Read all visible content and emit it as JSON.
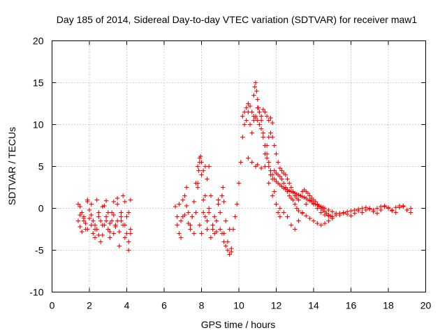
{
  "chart_data": {
    "type": "scatter",
    "title": "Day 185 of 2014, Sidereal Day-to-day VTEC variation (SDTVAR) for receiver maw1",
    "xlabel": "GPS time / hours",
    "ylabel": "SDTVAR / TECUs",
    "xlim": [
      0,
      20
    ],
    "ylim": [
      -10,
      20
    ],
    "xticks": [
      "0",
      "2",
      "4",
      "6",
      "8",
      "10",
      "12",
      "14",
      "16",
      "18",
      "20"
    ],
    "yticks": [
      "-10",
      "-5",
      "0",
      "5",
      "10",
      "15",
      "20"
    ],
    "grid": true,
    "marker": "+",
    "color": "#ff0000",
    "series": [
      {
        "name": "maw1",
        "x": [
          1.4,
          1.5,
          1.6,
          1.7,
          1.8,
          1.9,
          2.0,
          2.1,
          2.2,
          2.3,
          2.4,
          2.5,
          2.6,
          2.7,
          2.8,
          2.9,
          3.0,
          3.1,
          3.2,
          3.3,
          3.4,
          3.5,
          3.6,
          3.7,
          3.8,
          3.9,
          4.0,
          4.1,
          4.2,
          1.4,
          1.5,
          1.6,
          1.7,
          1.8,
          1.9,
          2.0,
          2.1,
          2.2,
          2.3,
          2.4,
          2.5,
          2.6,
          2.7,
          2.8,
          2.9,
          3.0,
          3.1,
          3.2,
          3.3,
          3.4,
          3.5,
          3.6,
          3.7,
          3.8,
          3.9,
          4.0,
          4.1,
          4.2,
          1.5,
          1.7,
          1.9,
          2.1,
          2.3,
          2.5,
          2.7,
          2.9,
          3.1,
          3.3,
          3.5,
          3.7,
          3.9,
          4.1,
          4.2,
          6.6,
          6.7,
          6.8,
          6.9,
          7.0,
          7.1,
          7.2,
          7.3,
          7.4,
          7.5,
          7.6,
          7.7,
          7.8,
          7.9,
          8.0,
          8.1,
          8.2,
          8.3,
          8.4,
          8.5,
          8.6,
          8.7,
          8.8,
          8.9,
          9.0,
          9.1,
          9.2,
          9.3,
          9.4,
          9.5,
          9.6,
          6.7,
          6.8,
          6.9,
          7.0,
          7.1,
          7.2,
          7.3,
          7.4,
          7.5,
          7.6,
          7.7,
          7.8,
          7.9,
          8.0,
          8.1,
          8.2,
          8.3,
          8.4,
          8.5,
          8.6,
          8.7,
          8.8,
          8.9,
          9.0,
          9.1,
          9.2,
          9.3,
          9.4,
          9.5,
          9.6,
          7.8,
          7.85,
          7.9,
          7.95,
          8.0,
          8.1,
          8.2,
          8.3,
          8.4,
          9.1,
          9.15,
          9.2,
          9.7,
          9.8,
          9.9,
          10.0,
          10.1,
          10.2,
          10.3,
          10.4,
          10.5,
          10.6,
          10.7,
          10.8,
          10.9,
          11.0,
          11.1,
          11.2,
          11.3,
          11.4,
          11.5,
          11.6,
          11.7,
          11.8,
          11.9,
          12.0,
          12.1,
          12.2,
          10.8,
          10.85,
          10.9,
          10.95,
          11.0,
          11.05,
          11.1,
          11.2,
          11.3,
          11.4,
          11.5,
          11.6,
          11.7,
          11.8,
          10.2,
          10.3,
          10.4,
          10.5,
          10.6,
          10.7,
          10.8,
          10.9,
          11.0,
          11.1,
          11.2,
          11.3,
          11.4,
          11.5,
          11.6,
          11.7,
          11.8,
          11.9,
          12.0,
          12.1,
          12.2,
          12.3,
          12.4,
          12.5,
          12.6,
          12.7,
          12.8,
          12.9,
          13.0,
          13.1,
          13.2,
          13.3,
          13.4,
          13.5,
          13.6,
          13.7,
          13.8,
          13.9,
          14.0,
          14.1,
          14.2,
          14.3,
          14.4,
          14.5,
          14.6,
          14.8,
          15.0,
          15.2,
          15.4,
          15.6,
          15.8,
          16.0,
          16.2,
          16.4,
          16.6,
          16.8,
          17.0,
          17.2,
          17.4,
          17.6,
          17.8,
          18.0,
          18.2,
          18.4,
          18.6,
          18.8,
          19.0,
          19.2,
          11.4,
          11.5,
          11.6,
          11.7,
          11.8,
          11.9,
          12.0,
          12.1,
          12.2,
          12.3,
          12.4,
          12.5,
          12.6,
          12.7,
          12.8,
          12.9,
          13.0,
          13.1,
          13.2,
          13.3,
          13.4,
          13.5,
          13.6,
          13.7,
          13.8,
          13.9,
          14.0,
          14.1,
          14.2,
          14.3,
          14.4,
          14.5,
          14.6,
          14.7,
          14.8,
          14.9,
          15.0,
          15.2,
          15.4,
          15.6,
          15.8,
          16.0,
          16.2,
          16.4,
          16.6,
          16.8,
          17.0,
          17.2,
          17.4,
          17.6,
          17.8,
          18.0,
          18.2,
          18.4,
          18.6,
          18.8,
          19.0,
          19.2,
          10.5,
          10.7,
          10.9,
          11.0,
          11.2,
          11.4,
          11.6,
          11.8,
          12.0,
          12.2,
          12.4,
          12.6,
          12.8,
          13.0,
          13.2,
          13.4,
          13.6,
          13.8,
          14.0,
          14.2,
          14.4,
          14.6,
          14.8,
          15.0,
          11.9,
          12.0,
          12.1,
          12.2,
          12.3,
          12.4,
          12.5,
          12.6,
          12.7,
          12.8,
          12.9,
          13.0,
          13.1,
          13.2,
          13.4,
          13.6,
          13.8,
          14.0,
          14.2,
          14.4,
          14.6,
          14.8,
          15.0
        ],
        "y": [
          0.5,
          0.2,
          -0.5,
          -1.5,
          -2.5,
          0.8,
          -0.2,
          0.5,
          -3.0,
          -2.0,
          1.0,
          -1.0,
          -4.0,
          -2.0,
          0.3,
          0.9,
          -0.5,
          -3.5,
          -1.5,
          0.8,
          -2.0,
          0.5,
          -4.5,
          -1.0,
          1.5,
          0.8,
          -3.0,
          -0.5,
          1.0,
          -1.5,
          -2.2,
          -2.8,
          -1.0,
          -1.8,
          -2.5,
          -1.2,
          -2.0,
          -1.5,
          -3.5,
          -2.5,
          -0.5,
          -1.5,
          -3.2,
          -2.0,
          -1.0,
          -2.5,
          -1.8,
          -0.5,
          -3.0,
          -2.2,
          -1.5,
          -2.8,
          -0.5,
          -2.0,
          -3.5,
          -1.0,
          -4.0,
          -3.0,
          -0.8,
          -1.2,
          1.0,
          -0.8,
          -2.5,
          -3.2,
          0.2,
          -1.5,
          -2.8,
          -0.8,
          1.2,
          -1.5,
          -2.0,
          -5.0,
          -2.5,
          0.2,
          -2.0,
          -3.0,
          -3.5,
          -1.0,
          1.5,
          2.5,
          -0.5,
          -2.0,
          -1.0,
          -3.0,
          3.0,
          5.0,
          6.0,
          5.5,
          1.0,
          -1.0,
          -2.5,
          -0.5,
          1.5,
          -2.5,
          -3.0,
          -1.5,
          1.0,
          -0.5,
          -3.0,
          -4.0,
          -4.5,
          -5.0,
          -5.5,
          -4.8,
          -1.0,
          0.5,
          -1.5,
          1.0,
          -0.8,
          0.3,
          -1.8,
          -2.5,
          -1.0,
          0.8,
          -0.5,
          2.5,
          -2.0,
          -3.0,
          -0.5,
          1.5,
          -1.5,
          0.0,
          -3.5,
          -2.0,
          -1.0,
          -2.8,
          0.5,
          -2.5,
          1.5,
          -3.0,
          -1.5,
          -4.0,
          -2.5,
          -5.2,
          3.0,
          4.5,
          5.5,
          6.2,
          4.0,
          4.5,
          5.0,
          3.5,
          5.0,
          1.5,
          2.5,
          0.8,
          -2.5,
          -1.0,
          0.5,
          3.0,
          5.5,
          8.5,
          10.0,
          10.5,
          11.5,
          10.0,
          9.0,
          10.5,
          11.0,
          12.0,
          11.5,
          10.5,
          9.0,
          7.5,
          6.0,
          5.0,
          4.0,
          3.5,
          2.0,
          0.5,
          -0.5,
          -1.0,
          13.5,
          14.5,
          15.0,
          14.0,
          13.0,
          12.0,
          11.5,
          11.0,
          11.8,
          11.5,
          11.0,
          10.5,
          10.8,
          10.2,
          11.0,
          11.5,
          12.0,
          12.5,
          12.2,
          11.5,
          11.0,
          10.8,
          10.5,
          10.0,
          9.5,
          8.5,
          7.5,
          6.5,
          5.5,
          4.5,
          4.0,
          3.5,
          3.2,
          3.0,
          2.8,
          2.6,
          2.4,
          2.3,
          2.2,
          2.1,
          2.0,
          1.9,
          1.8,
          1.7,
          1.6,
          1.5,
          1.4,
          1.3,
          1.2,
          1.0,
          0.9,
          0.8,
          0.6,
          0.5,
          0.4,
          0.3,
          0.2,
          0.1,
          0.0,
          -0.2,
          -0.4,
          -0.6,
          -0.8,
          -0.6,
          -0.4,
          -0.3,
          -0.2,
          -0.1,
          0.0,
          0.1,
          -0.1,
          -0.2,
          0.0,
          0.2,
          0.3,
          0.1,
          -0.2,
          0.1,
          0.3,
          0.2,
          -0.2,
          0.0,
          6.5,
          7.5,
          8.5,
          9.0,
          8.5,
          7.5,
          6.5,
          5.5,
          4.8,
          4.5,
          4.2,
          4.0,
          3.5,
          3.0,
          2.5,
          2.0,
          1.5,
          1.2,
          1.0,
          1.5,
          2.0,
          2.2,
          2.0,
          1.8,
          1.5,
          1.2,
          1.0,
          0.8,
          0.5,
          0.2,
          0.0,
          -0.2,
          -0.4,
          -0.6,
          -0.8,
          -0.9,
          -1.0,
          -0.8,
          -0.6,
          -0.5,
          -0.7,
          -0.9,
          -0.6,
          -0.3,
          -0.5,
          -0.2,
          0.0,
          -0.4,
          -0.6,
          -0.2,
          0.2,
          0.0,
          -0.3,
          -0.5,
          0.1,
          0.3,
          -0.2,
          -0.5,
          6.0,
          5.5,
          5.0,
          5.2,
          4.8,
          5.0,
          3.0,
          1.5,
          0.5,
          0.0,
          -0.5,
          -1.0,
          -2.0,
          -2.5,
          -1.5,
          -0.5,
          0.5,
          1.0,
          0.5,
          0.0,
          -0.5,
          -0.8,
          -0.9,
          -1.0,
          4.5,
          4.2,
          4.0,
          3.8,
          3.5,
          3.0,
          2.5,
          2.0,
          1.5,
          1.2,
          1.0,
          0.5,
          0.0,
          -0.3,
          -0.6,
          -0.9,
          -1.2,
          -1.5,
          -1.8,
          -2.0,
          -1.8,
          -1.5,
          -1.2
        ]
      }
    ]
  }
}
